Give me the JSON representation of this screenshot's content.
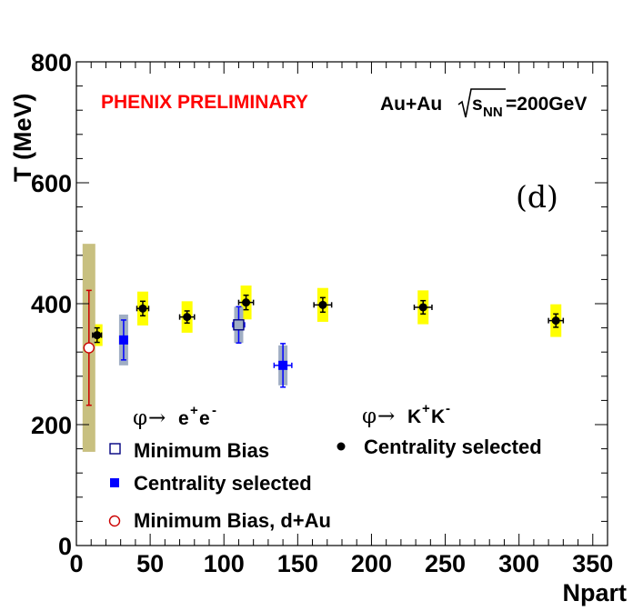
{
  "chart_data": {
    "type": "scatter",
    "xlabel": "Npart",
    "ylabel": "T (MeV)",
    "xlim": [
      0,
      360
    ],
    "ylim": [
      0,
      800
    ],
    "xticks": [
      0,
      50,
      100,
      150,
      200,
      250,
      300,
      350
    ],
    "yticks": [
      0,
      200,
      400,
      600,
      800
    ],
    "x_tick_labels": [
      "0",
      "50",
      "100",
      "150",
      "200",
      "250",
      "300",
      "350"
    ],
    "y_tick_labels": [
      "0",
      "200",
      "400",
      "600",
      "800"
    ],
    "annotations": {
      "preliminary": "PHENIX PRELIMINARY",
      "system_prefix": "Au+Au ",
      "system_sqrt_s": "s",
      "system_subscript": "NN",
      "system_energy": "=200GeV",
      "panel": "(d)"
    },
    "legend": {
      "ee_phi": "φ",
      "ee_arrow": "→",
      "ee_e1": "e",
      "ee_plus": "+",
      "ee_e2": "e",
      "ee_minus": "-",
      "kk_phi": "φ",
      "kk_arrow": "→",
      "kk_k1": "K",
      "kk_plus": "+",
      "kk_k2": "K",
      "kk_minus": "-",
      "minimum_bias": "Minimum Bias",
      "centrality_selected_ee": "Centrality selected",
      "minimum_bias_dau": "Minimum Bias, d+Au",
      "centrality_selected_kk": "Centrality selected"
    },
    "series": [
      {
        "name": "phi->K+K- Centrality selected",
        "marker": "filled-circle",
        "color": "#000000",
        "sys_color": "#ffff00",
        "points": [
          {
            "x": 14,
            "y": 348,
            "xerr": 3,
            "yerr": 12,
            "sys": 18
          },
          {
            "x": 45,
            "y": 392,
            "xerr": 4,
            "yerr": 12,
            "sys": 28
          },
          {
            "x": 75,
            "y": 378,
            "xerr": 5,
            "yerr": 10,
            "sys": 26
          },
          {
            "x": 115,
            "y": 402,
            "xerr": 5,
            "yerr": 12,
            "sys": 28
          },
          {
            "x": 167,
            "y": 398,
            "xerr": 6,
            "yerr": 12,
            "sys": 28
          },
          {
            "x": 235,
            "y": 394,
            "xerr": 6,
            "yerr": 11,
            "sys": 28
          },
          {
            "x": 325,
            "y": 372,
            "xerr": 5,
            "yerr": 11,
            "sys": 27
          }
        ]
      },
      {
        "name": "phi->e+e- Centrality selected",
        "marker": "filled-square",
        "color": "#0000ff",
        "sys_color": "#a0aec4",
        "points": [
          {
            "x": 32,
            "y": 340,
            "xerr": 0,
            "yerr": 33,
            "sys": 42
          },
          {
            "x": 140,
            "y": 298,
            "xerr": 6,
            "yerr": 36,
            "sys": 33
          }
        ]
      },
      {
        "name": "phi->e+e- Minimum Bias",
        "marker": "open-square",
        "color": "#0000ff",
        "sys_color": "#a0aec4",
        "points": [
          {
            "x": 110,
            "y": 365,
            "xerr": 4,
            "yerr": 30,
            "sys": 30
          }
        ]
      },
      {
        "name": "phi->e+e- Minimum Bias, d+Au",
        "marker": "open-circle",
        "color": "#cc0000",
        "sys_color": "#c8c080",
        "points": [
          {
            "x": 8.5,
            "y": 327,
            "xerr": 0,
            "yerr": 95,
            "sys": 172
          }
        ]
      }
    ]
  }
}
